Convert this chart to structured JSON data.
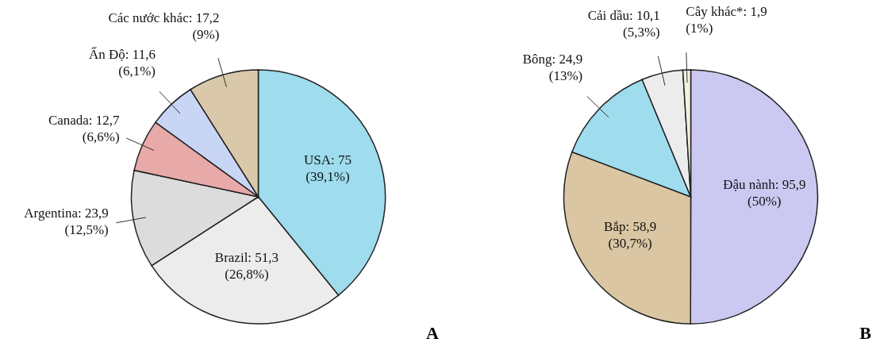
{
  "chart_data": [
    {
      "type": "pie",
      "categories": [
        "USA",
        "Brazil",
        "Argentina",
        "Canada",
        "Ấn Độ",
        "Các nước khác"
      ],
      "values": [
        75,
        51.3,
        23.9,
        12.7,
        11.6,
        17.2
      ],
      "colors": [
        "#9edcee",
        "#ececec",
        "#dcdcdc",
        "#e8a9a9",
        "#c9d5f5",
        "#dac8aa"
      ],
      "value_labels": [
        "75 (39,1%)",
        "51,3 (26,8%)",
        "23,9 (12,5%)",
        "12,7 (6,6%)",
        "11,6 (6,1%)",
        "17,2 (9%)"
      ],
      "annotations": [
        "A"
      ]
    },
    {
      "type": "pie",
      "categories": [
        "Đậu nành",
        "Bắp",
        "Bông",
        "Cải dầu",
        "Cây khác*"
      ],
      "values": [
        95.9,
        58.9,
        24.9,
        10.1,
        1.9
      ],
      "colors": [
        "#cbc9f2",
        "#dac6a2",
        "#9edcee",
        "#ececec",
        "#f5f1e2"
      ],
      "value_labels": [
        "95,9 (50%)",
        "58,9 (30,7%)",
        "24,9 (13%)",
        "10,1 (5,3%)",
        "1,9 (1%)"
      ],
      "annotations": [
        "B"
      ]
    }
  ]
}
